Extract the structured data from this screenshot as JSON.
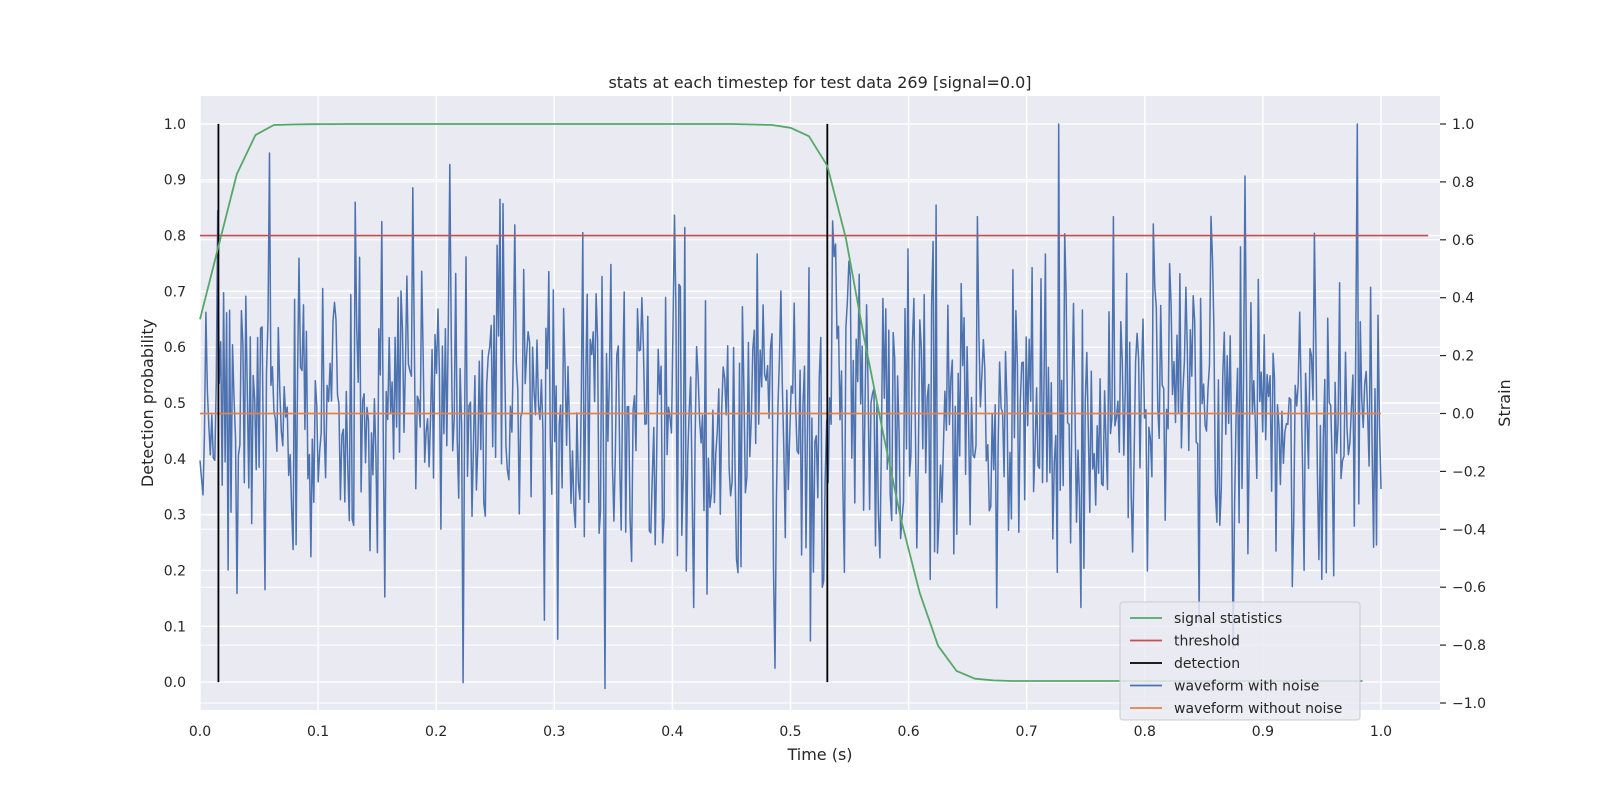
{
  "chart_data": {
    "type": "line",
    "title": "stats at each timestep for test data 269 [signal=0.0]",
    "xlabel": "Time (s)",
    "ylabel_left": "Detection probability",
    "ylabel_right": "Strain",
    "xlim": [
      0.0,
      1.05
    ],
    "ylim_left": [
      -0.05,
      1.05
    ],
    "ylim_right": [
      -1.0,
      1.0
    ],
    "xticks": [
      "0.0",
      "0.1",
      "0.2",
      "0.3",
      "0.4",
      "0.5",
      "0.6",
      "0.7",
      "0.8",
      "0.9",
      "1.0"
    ],
    "yticks_left": [
      "0.0",
      "0.1",
      "0.2",
      "0.3",
      "0.4",
      "0.5",
      "0.6",
      "0.7",
      "0.8",
      "0.9",
      "1.0"
    ],
    "yticks_right": [
      "−1.0",
      "−0.8",
      "−0.6",
      "−0.4",
      "−0.2",
      "0.0",
      "0.2",
      "0.4",
      "0.6",
      "0.8",
      "1.0"
    ],
    "grid": true,
    "legend_position": "lower-right",
    "series": [
      {
        "name": "signal statistics",
        "axis": "left",
        "color": "#55a868",
        "x": [
          0.0,
          0.0156,
          0.0312,
          0.0469,
          0.0625,
          0.0781,
          0.0938,
          0.1094,
          0.125,
          0.15,
          0.2,
          0.25,
          0.3,
          0.35,
          0.4,
          0.45,
          0.4844,
          0.5,
          0.5156,
          0.5312,
          0.5469,
          0.5625,
          0.5781,
          0.5938,
          0.6094,
          0.625,
          0.6406,
          0.6562,
          0.6719,
          0.6875,
          0.7031,
          0.75,
          0.8,
          0.85,
          0.9,
          0.95,
          0.9844
        ],
        "y": [
          0.65,
          0.78,
          0.91,
          0.98,
          0.998,
          0.999,
          0.9995,
          0.9997,
          0.9998,
          0.9999,
          0.9999,
          0.9999,
          0.9999,
          0.9999,
          0.9999,
          0.9999,
          0.998,
          0.993,
          0.978,
          0.925,
          0.795,
          0.615,
          0.45,
          0.29,
          0.16,
          0.065,
          0.02,
          0.006,
          0.003,
          0.002,
          0.002,
          0.002,
          0.002,
          0.002,
          0.002,
          0.002,
          0.002
        ]
      },
      {
        "name": "threshold",
        "axis": "left",
        "color": "#c44e52",
        "x": [
          0.0,
          1.04
        ],
        "y": [
          0.8,
          0.8
        ]
      },
      {
        "name": "detection",
        "axis": "left",
        "color": "#000000",
        "x_positions": [
          0.0156,
          0.5312
        ],
        "y_range": [
          0.0,
          1.0
        ]
      },
      {
        "name": "waveform with noise",
        "axis": "right",
        "color": "#4c72b0",
        "x_range": [
          0.0,
          1.0
        ],
        "n_points": 800,
        "peaks": [
          [
            0.0156,
            0.7
          ],
          [
            0.0586,
            0.9
          ],
          [
            0.2109,
            0.86
          ],
          [
            0.2227,
            -0.93
          ],
          [
            0.2539,
            0.74
          ],
          [
            0.3027,
            -0.78
          ],
          [
            0.4863,
            -0.88
          ],
          [
            0.5273,
            -0.6
          ],
          [
            0.7266,
            1.0
          ],
          [
            0.7461,
            -0.67
          ],
          [
            0.8457,
            -0.72
          ],
          [
            0.8848,
            0.82
          ],
          [
            0.9805,
            1.0
          ],
          [
            0.7734,
            0.68
          ],
          [
            0.6582,
            0.68
          ],
          [
            0.623,
            0.72
          ],
          [
            0.5859,
            -0.37
          ],
          [
            0.4185,
            -0.67
          ],
          [
            0.1797,
            0.78
          ],
          [
            0.1309,
            0.73
          ],
          [
            0.9531,
            -0.55
          ]
        ],
        "noise_std": 0.27,
        "seed": 269
      },
      {
        "name": "waveform without noise",
        "axis": "right",
        "color": "#dd8452",
        "x": [
          0.0,
          1.0
        ],
        "y": [
          0.0,
          0.0
        ]
      }
    ]
  }
}
